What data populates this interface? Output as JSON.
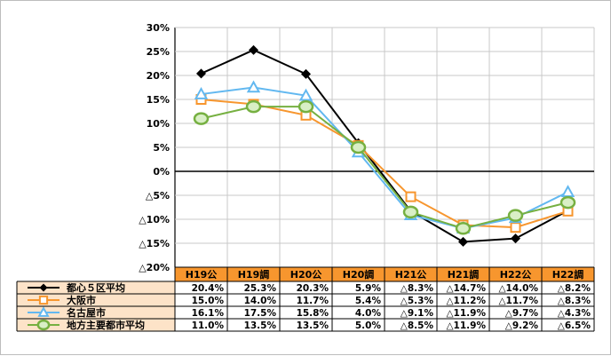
{
  "chart_data": {
    "type": "line",
    "title": "",
    "xlabel": "",
    "ylabel": "",
    "categories": [
      "H19公",
      "H19調",
      "H20公",
      "H20調",
      "H21公",
      "H21調",
      "H22公",
      "H22調"
    ],
    "ylim": [
      -20,
      30
    ],
    "yticks": [
      {
        "value": 30,
        "label": "30%"
      },
      {
        "value": 25,
        "label": "25%"
      },
      {
        "value": 20,
        "label": "20%"
      },
      {
        "value": 15,
        "label": "15%"
      },
      {
        "value": 10,
        "label": "10%"
      },
      {
        "value": 5,
        "label": "5%"
      },
      {
        "value": 0,
        "label": "0%"
      },
      {
        "value": -5,
        "label": "△5%"
      },
      {
        "value": -10,
        "label": "△10%"
      },
      {
        "value": -15,
        "label": "△15%"
      },
      {
        "value": -20,
        "label": "△20%"
      }
    ],
    "grid": true,
    "legend": "table-left",
    "series": [
      {
        "name": "都心５区平均",
        "color": "#000000",
        "marker": "diamond",
        "values": [
          20.4,
          25.3,
          20.3,
          5.9,
          -8.3,
          -14.7,
          -14.0,
          -8.2
        ],
        "labels": [
          "20.4%",
          "25.3%",
          "20.3%",
          "5.9%",
          "△8.3%",
          "△14.7%",
          "△14.0%",
          "△8.2%"
        ]
      },
      {
        "name": "大阪市",
        "color": "#f7962e",
        "marker": "square",
        "values": [
          15.0,
          14.0,
          11.7,
          5.4,
          -5.3,
          -11.2,
          -11.7,
          -8.3
        ],
        "labels": [
          "15.0%",
          "14.0%",
          "11.7%",
          "5.4%",
          "△5.3%",
          "△11.2%",
          "△11.7%",
          "△8.3%"
        ]
      },
      {
        "name": "名古屋市",
        "color": "#62b8f0",
        "marker": "triangle",
        "values": [
          16.1,
          17.5,
          15.8,
          4.0,
          -9.1,
          -11.9,
          -9.7,
          -4.3
        ],
        "labels": [
          "16.1%",
          "17.5%",
          "15.8%",
          "4.0%",
          "△9.1%",
          "△11.9%",
          "△9.7%",
          "△4.3%"
        ]
      },
      {
        "name": "地方主要都市平均",
        "color": "#76b041",
        "marker": "circle",
        "values": [
          11.0,
          13.5,
          13.5,
          5.0,
          -8.5,
          -11.9,
          -9.2,
          -6.5
        ],
        "labels": [
          "11.0%",
          "13.5%",
          "13.5%",
          "5.0%",
          "△8.5%",
          "△11.9%",
          "△9.2%",
          "△6.5%"
        ]
      }
    ],
    "colors": {
      "header_bg": "#f7962e",
      "label_bg": "#fde3c8",
      "grid": "#c8c8c8",
      "axis": "#000000"
    }
  }
}
